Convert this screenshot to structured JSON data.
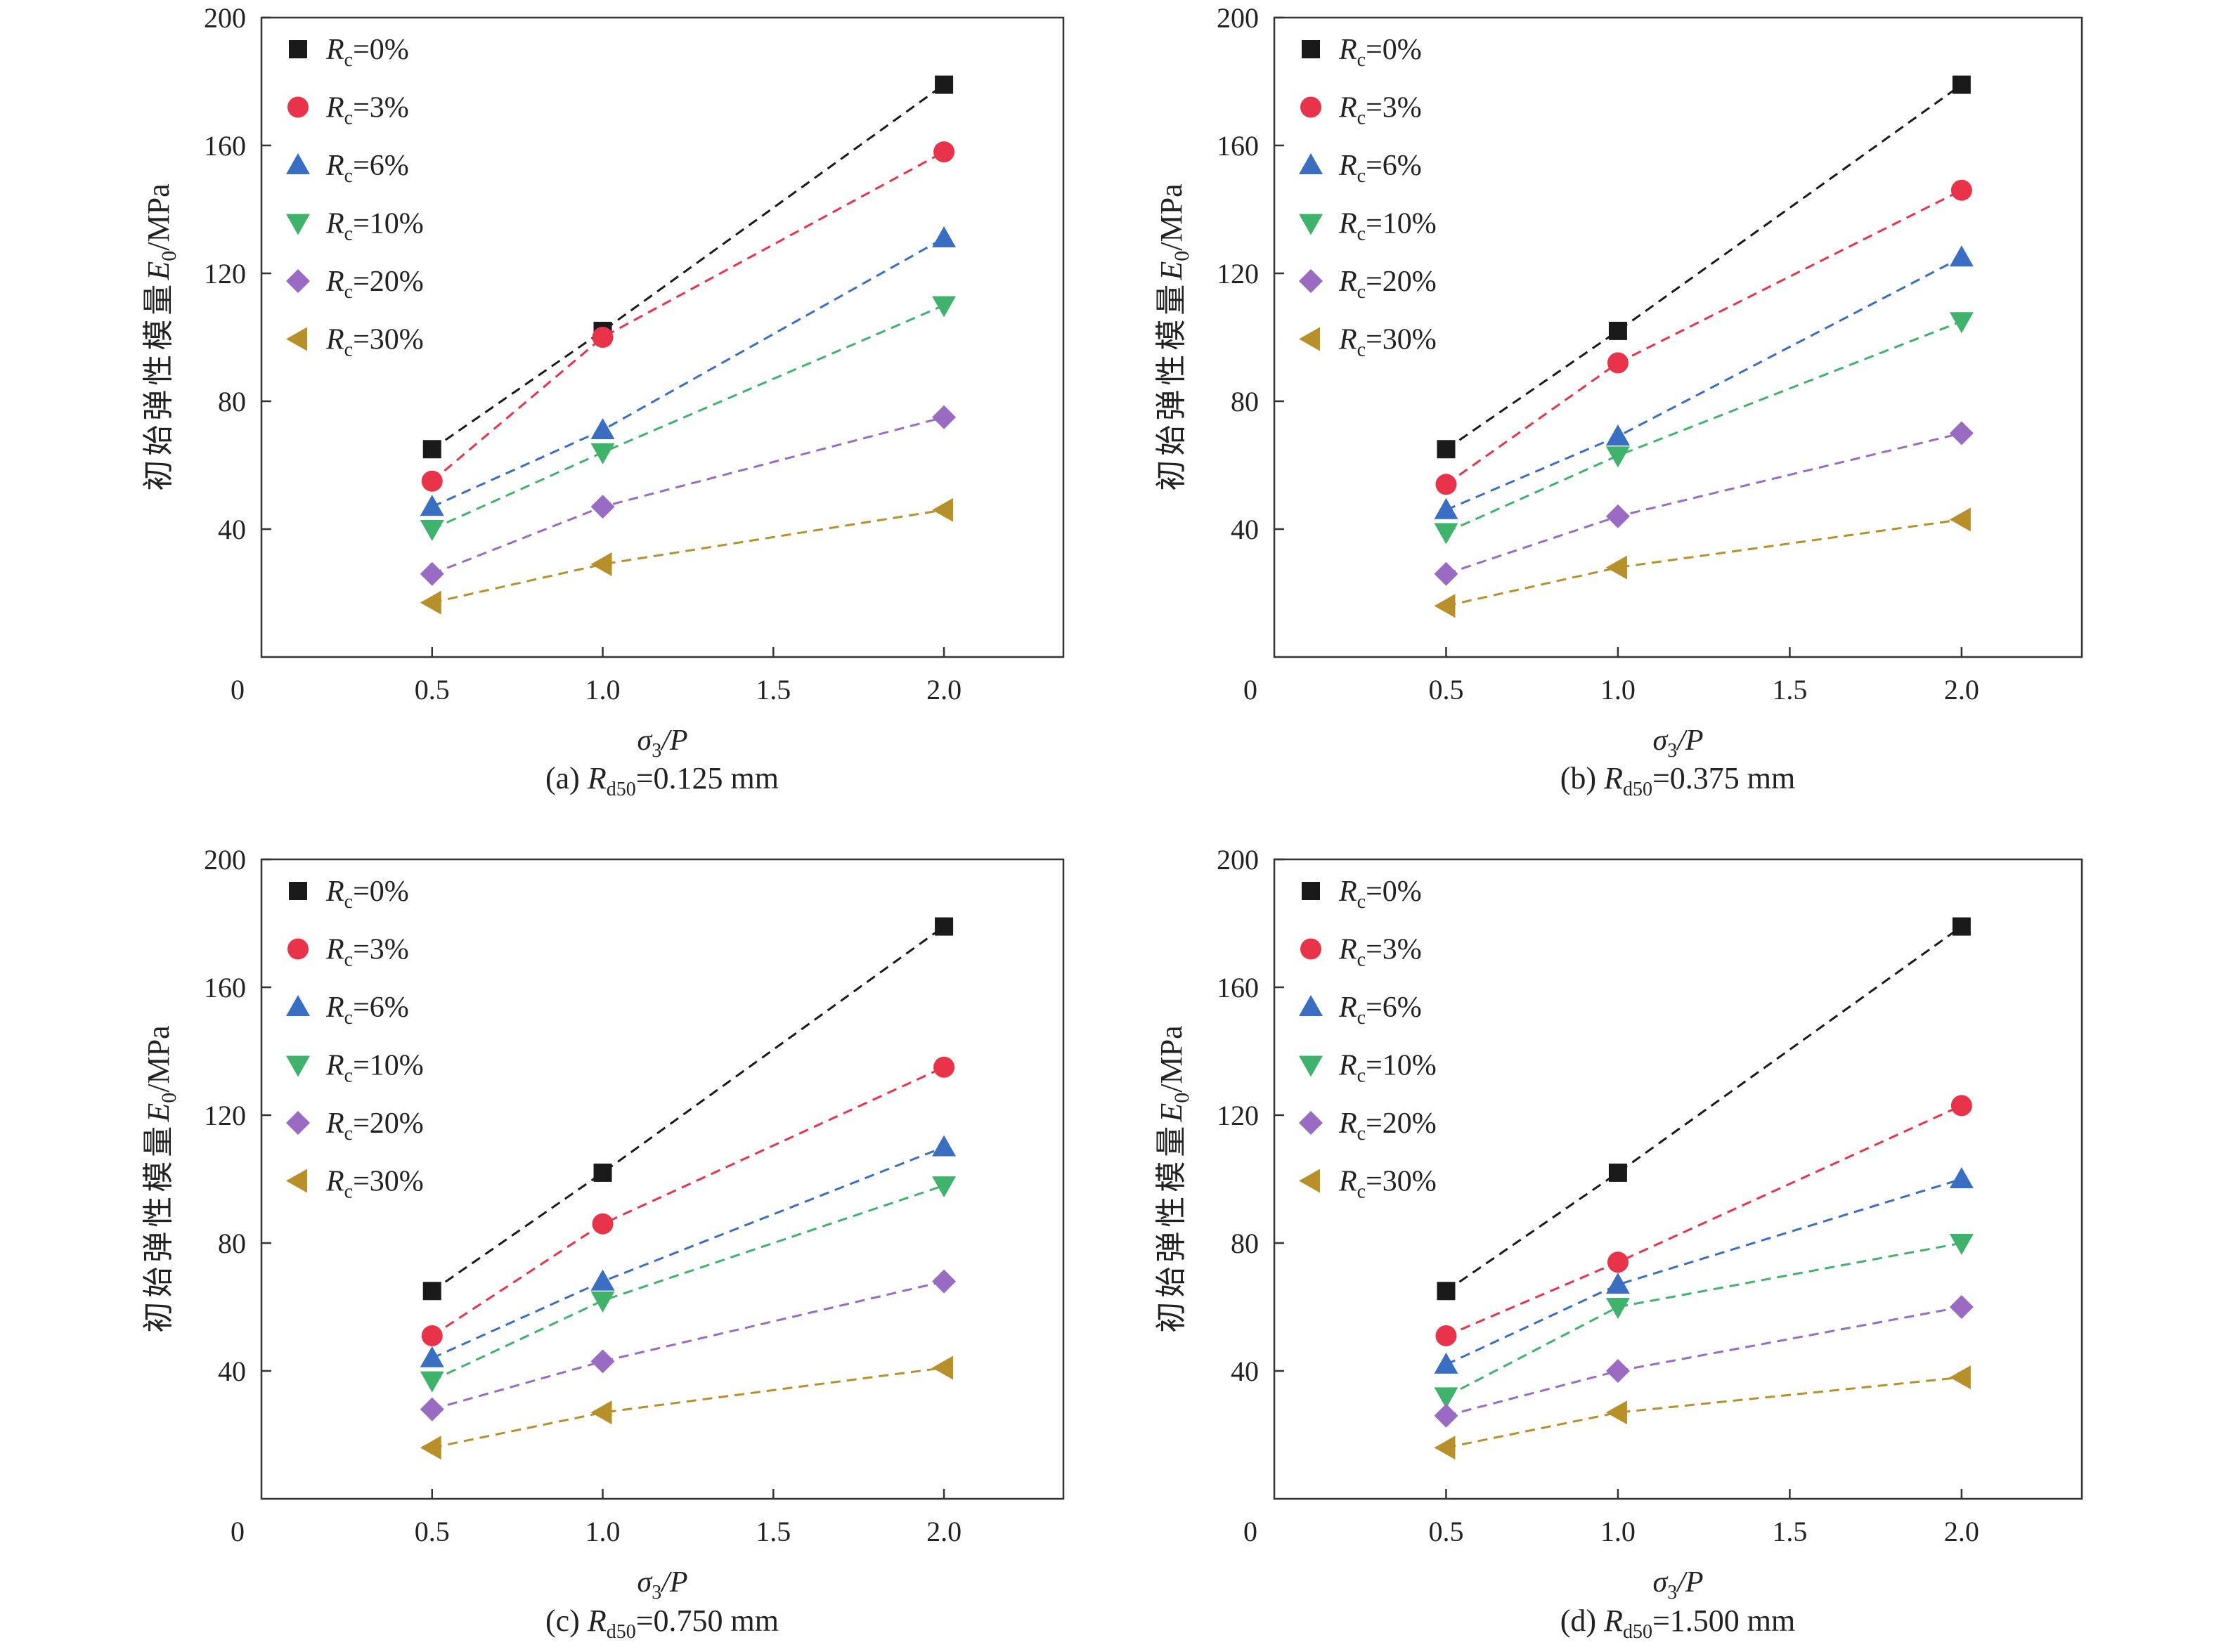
{
  "shared": {
    "y_label_prefix": "初始弹性模量",
    "y_label_var": "E",
    "y_label_sub": "0",
    "y_label_unit": "/MPa",
    "x_label_var": "σ",
    "x_label_sub": "3",
    "x_label_rest": "/P",
    "legend_var": "R",
    "legend_sub": "c",
    "caption_var": "R",
    "caption_sub": "d50",
    "x_origin_label": "0"
  },
  "chart_data": [
    {
      "type": "scatter",
      "panel_label": "(a) ",
      "caption_value": "=0.125 mm",
      "xlim": [
        0,
        2.35
      ],
      "ylim": [
        0,
        200
      ],
      "x_ticks": [
        "0.5",
        "1.0",
        "1.5",
        "2.0"
      ],
      "x_tick_values": [
        0.5,
        1.0,
        1.5,
        2.0
      ],
      "y_ticks": [
        "40",
        "80",
        "120",
        "160",
        "200"
      ],
      "y_tick_values": [
        40,
        80,
        120,
        160,
        200
      ],
      "grid": false,
      "legend_position": "top-left",
      "x": [
        0.5,
        1.0,
        2.0
      ],
      "series": [
        {
          "name": "=0%",
          "marker": "square",
          "color": "#1a1a1a",
          "values": [
            65,
            102,
            179
          ]
        },
        {
          "name": "=3%",
          "marker": "circle",
          "color": "#e8334a",
          "values": [
            55,
            100,
            158
          ]
        },
        {
          "name": "=6%",
          "marker": "triangle-up",
          "color": "#3a6ec2",
          "values": [
            47,
            71,
            131
          ]
        },
        {
          "name": "=10%",
          "marker": "triangle-down",
          "color": "#3fb26b",
          "values": [
            40,
            64,
            110
          ]
        },
        {
          "name": "=20%",
          "marker": "diamond",
          "color": "#9a6bc2",
          "values": [
            26,
            47,
            75
          ]
        },
        {
          "name": "=30%",
          "marker": "triangle-left",
          "color": "#b8902a",
          "values": [
            17,
            29,
            46
          ]
        }
      ]
    },
    {
      "type": "scatter",
      "panel_label": "(b) ",
      "caption_value": "=0.375 mm",
      "xlim": [
        0,
        2.35
      ],
      "ylim": [
        0,
        200
      ],
      "x_ticks": [
        "0.5",
        "1.0",
        "1.5",
        "2.0"
      ],
      "x_tick_values": [
        0.5,
        1.0,
        1.5,
        2.0
      ],
      "y_ticks": [
        "40",
        "80",
        "120",
        "160",
        "200"
      ],
      "y_tick_values": [
        40,
        80,
        120,
        160,
        200
      ],
      "grid": false,
      "legend_position": "top-left",
      "x": [
        0.5,
        1.0,
        2.0
      ],
      "series": [
        {
          "name": "=0%",
          "marker": "square",
          "color": "#1a1a1a",
          "values": [
            65,
            102,
            179
          ]
        },
        {
          "name": "=3%",
          "marker": "circle",
          "color": "#e8334a",
          "values": [
            54,
            92,
            146
          ]
        },
        {
          "name": "=6%",
          "marker": "triangle-up",
          "color": "#3a6ec2",
          "values": [
            46,
            69,
            125
          ]
        },
        {
          "name": "=10%",
          "marker": "triangle-down",
          "color": "#3fb26b",
          "values": [
            39,
            63,
            105
          ]
        },
        {
          "name": "=20%",
          "marker": "diamond",
          "color": "#9a6bc2",
          "values": [
            26,
            44,
            70
          ]
        },
        {
          "name": "=30%",
          "marker": "triangle-left",
          "color": "#b8902a",
          "values": [
            16,
            28,
            43
          ]
        }
      ]
    },
    {
      "type": "scatter",
      "panel_label": "(c) ",
      "caption_value": "=0.750 mm",
      "xlim": [
        0,
        2.35
      ],
      "ylim": [
        0,
        200
      ],
      "x_ticks": [
        "0.5",
        "1.0",
        "1.5",
        "2.0"
      ],
      "x_tick_values": [
        0.5,
        1.0,
        1.5,
        2.0
      ],
      "y_ticks": [
        "40",
        "80",
        "120",
        "160",
        "200"
      ],
      "y_tick_values": [
        40,
        80,
        120,
        160,
        200
      ],
      "grid": false,
      "legend_position": "top-left",
      "x": [
        0.5,
        1.0,
        2.0
      ],
      "series": [
        {
          "name": "=0%",
          "marker": "square",
          "color": "#1a1a1a",
          "values": [
            65,
            102,
            179
          ]
        },
        {
          "name": "=3%",
          "marker": "circle",
          "color": "#e8334a",
          "values": [
            51,
            86,
            135
          ]
        },
        {
          "name": "=6%",
          "marker": "triangle-up",
          "color": "#3a6ec2",
          "values": [
            44,
            68,
            110
          ]
        },
        {
          "name": "=10%",
          "marker": "triangle-down",
          "color": "#3fb26b",
          "values": [
            37,
            62,
            98
          ]
        },
        {
          "name": "=20%",
          "marker": "diamond",
          "color": "#9a6bc2",
          "values": [
            28,
            43,
            68
          ]
        },
        {
          "name": "=30%",
          "marker": "triangle-left",
          "color": "#b8902a",
          "values": [
            16,
            27,
            41
          ]
        }
      ]
    },
    {
      "type": "scatter",
      "panel_label": "(d) ",
      "caption_value": "=1.500 mm",
      "xlim": [
        0,
        2.35
      ],
      "ylim": [
        0,
        200
      ],
      "x_ticks": [
        "0.5",
        "1.0",
        "1.5",
        "2.0"
      ],
      "x_tick_values": [
        0.5,
        1.0,
        1.5,
        2.0
      ],
      "y_ticks": [
        "40",
        "80",
        "120",
        "160",
        "200"
      ],
      "y_tick_values": [
        40,
        80,
        120,
        160,
        200
      ],
      "grid": false,
      "legend_position": "top-left",
      "x": [
        0.5,
        1.0,
        2.0
      ],
      "series": [
        {
          "name": "=0%",
          "marker": "square",
          "color": "#1a1a1a",
          "values": [
            65,
            102,
            179
          ]
        },
        {
          "name": "=3%",
          "marker": "circle",
          "color": "#e8334a",
          "values": [
            51,
            74,
            123
          ]
        },
        {
          "name": "=6%",
          "marker": "triangle-up",
          "color": "#3a6ec2",
          "values": [
            42,
            67,
            100
          ]
        },
        {
          "name": "=10%",
          "marker": "triangle-down",
          "color": "#3fb26b",
          "values": [
            32,
            60,
            80
          ]
        },
        {
          "name": "=20%",
          "marker": "diamond",
          "color": "#9a6bc2",
          "values": [
            26,
            40,
            60
          ]
        },
        {
          "name": "=30%",
          "marker": "triangle-left",
          "color": "#b8902a",
          "values": [
            16,
            27,
            38
          ]
        }
      ]
    }
  ]
}
